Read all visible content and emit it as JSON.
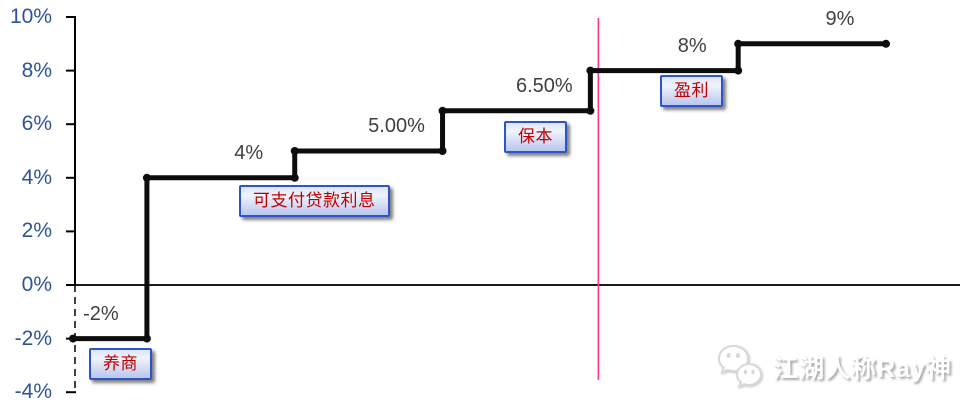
{
  "chart_data": {
    "type": "line",
    "subtype": "step",
    "grid": false,
    "legend": false,
    "points": [
      {
        "value": -2,
        "label": "-2%",
        "annotation": "养商"
      },
      {
        "value": 4,
        "label": "4%",
        "annotation": "可支付贷款利息"
      },
      {
        "value": 5,
        "label": "5.00%",
        "annotation": ""
      },
      {
        "value": 6.5,
        "label": "6.50%",
        "annotation": "保本"
      },
      {
        "value": 8,
        "label": "8%",
        "annotation": "盈利"
      },
      {
        "value": 9,
        "label": "9%",
        "annotation": ""
      }
    ],
    "y_axis": {
      "min": -4,
      "max": 10,
      "ticks": [
        {
          "value": 10,
          "label": "10%"
        },
        {
          "value": 8,
          "label": "8%"
        },
        {
          "value": 6,
          "label": "6%"
        },
        {
          "value": 4,
          "label": "4%"
        },
        {
          "value": 2,
          "label": "2%"
        },
        {
          "value": 0,
          "label": "0%"
        },
        {
          "value": -2,
          "label": "-2%"
        },
        {
          "value": -4,
          "label": "-4%"
        }
      ]
    },
    "divider": {
      "after_point_index": 4,
      "color": "#FF3399"
    },
    "styles": {
      "line_color": "#0d0d0d",
      "axis_color": "#000000",
      "zero_line_color": "#1a1a1a",
      "data_label_color": "#3F3F3F",
      "axis_label_color": "#2F5496",
      "annotation_text_color": "#C00000",
      "annotation_border_color": "#2b55c8"
    }
  },
  "watermark": {
    "text": "江湖人称Ray神",
    "icon": "wechat-icon"
  }
}
